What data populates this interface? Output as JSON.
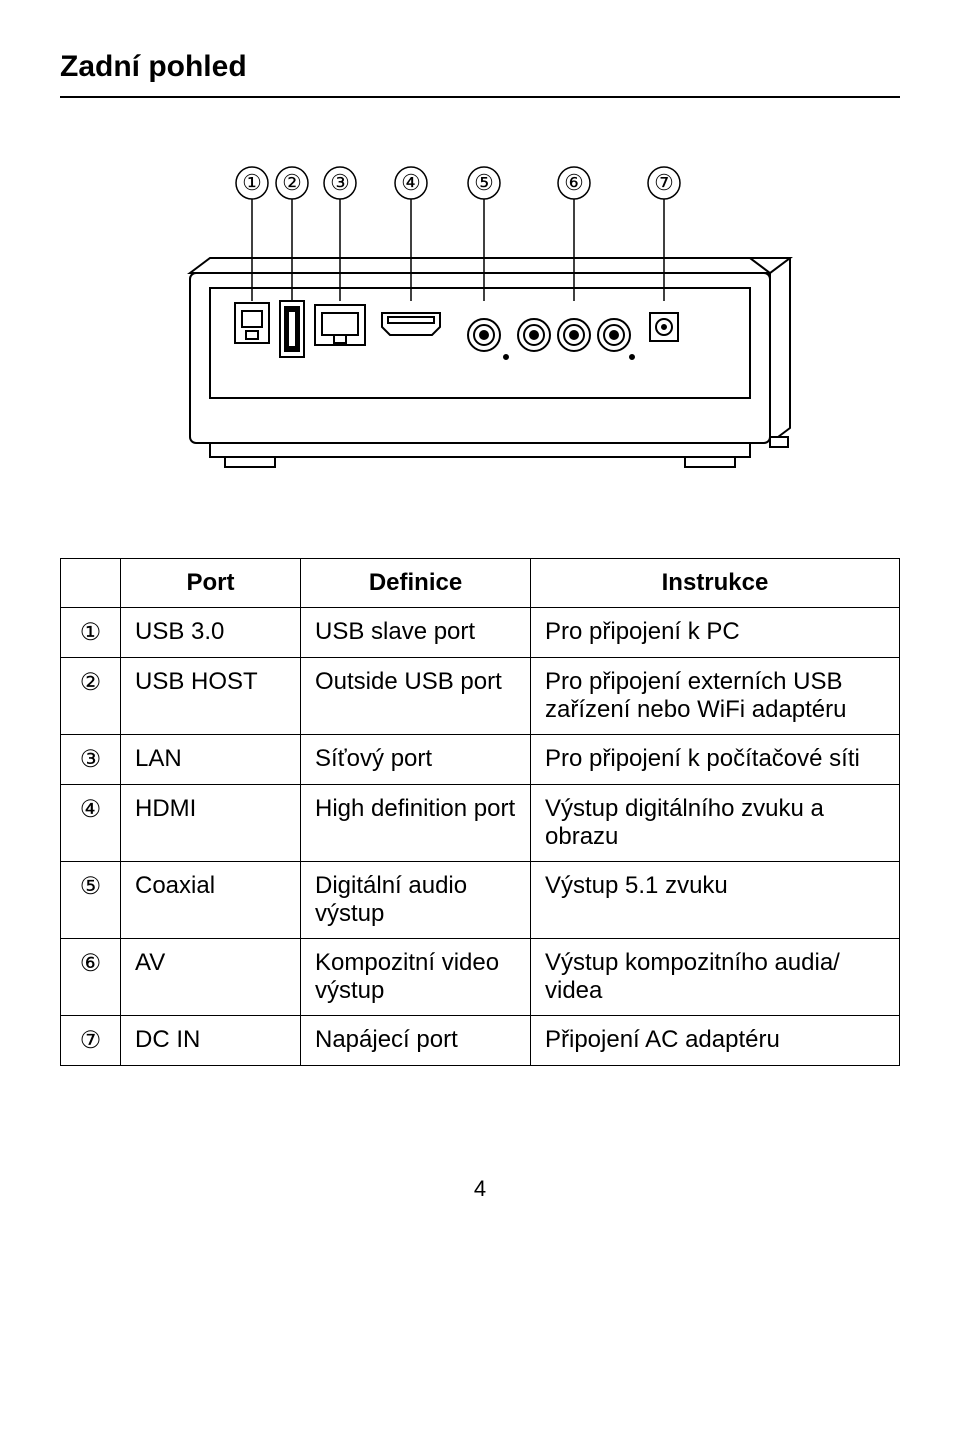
{
  "title": "Zadní pohled",
  "page_number": "4",
  "diagram": {
    "callouts": [
      "①",
      "②",
      "③",
      "④",
      "⑤",
      "⑥",
      "⑦"
    ],
    "stroke": "#000000",
    "fill": "#ffffff",
    "callout_fontsize": 22
  },
  "table": {
    "headers": [
      "",
      "Port",
      "Definice",
      "Instrukce"
    ],
    "rows": [
      {
        "num": "①",
        "port": "USB 3.0",
        "def": "USB slave port",
        "instr": "Pro připojení k PC"
      },
      {
        "num": "②",
        "port": "USB HOST",
        "def": "Outside USB port",
        "instr": "Pro připojení externích USB zařízení nebo WiFi adaptéru"
      },
      {
        "num": "③",
        "port": "LAN",
        "def": "Síťový port",
        "instr": "Pro připojení k počítačové síti"
      },
      {
        "num": "④",
        "port": "HDMI",
        "def": "High definition port",
        "instr": "Výstup digitálního zvuku a obrazu"
      },
      {
        "num": "⑤",
        "port": "Coaxial",
        "def": "Digitální audio výstup",
        "instr": "Výstup 5.1 zvuku"
      },
      {
        "num": "⑥",
        "port": "AV",
        "def": "Kompozitní video výstup",
        "instr": "Výstup kompozitního audia/ videa"
      },
      {
        "num": "⑦",
        "port": "DC IN",
        "def": "Napájecí port",
        "instr": "Připojení AC adaptéru"
      }
    ]
  }
}
